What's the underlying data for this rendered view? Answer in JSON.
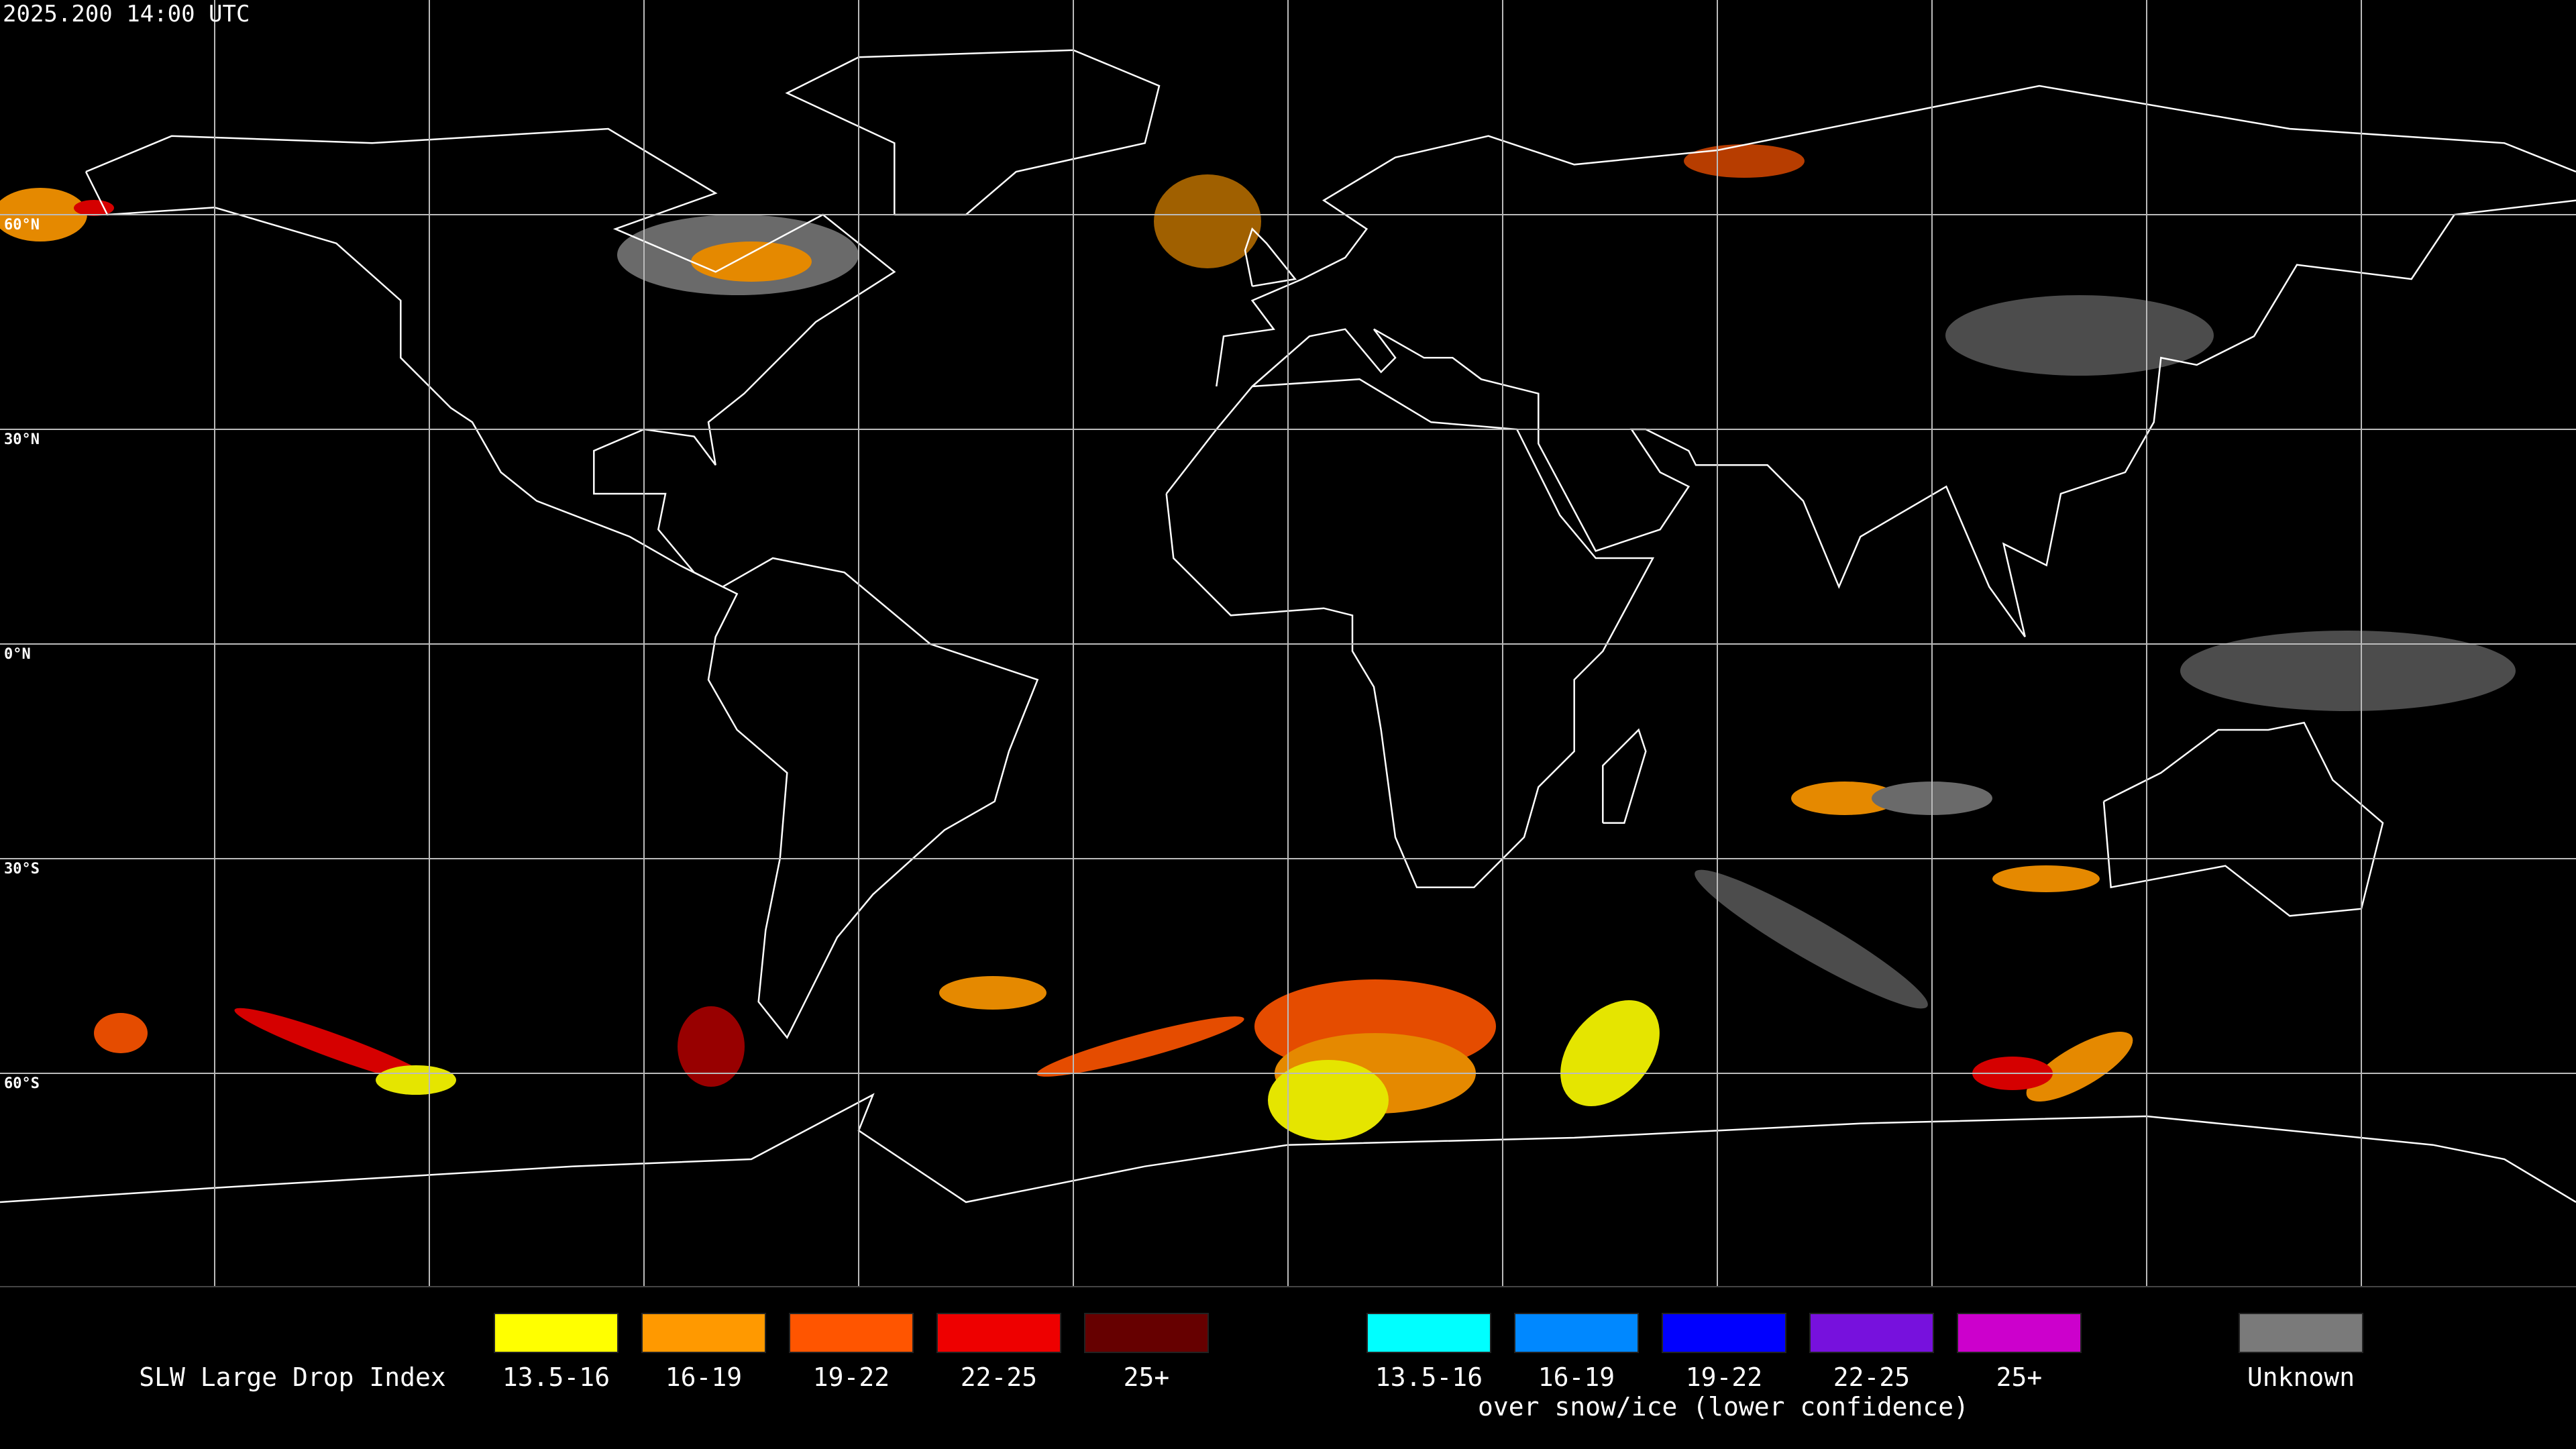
{
  "header": {
    "timestamp": "2025.200 14:00 UTC"
  },
  "map": {
    "latitude_labels": [
      "60°N",
      "30°N",
      "0°N",
      "30°S",
      "60°S"
    ]
  },
  "legend": {
    "title": "SLW Large Drop Index",
    "items": [
      {
        "label": "13.5-16",
        "color": "#ffff00"
      },
      {
        "label": "16-19",
        "color": "#ff9900"
      },
      {
        "label": "19-22",
        "color": "#ff5500"
      },
      {
        "label": "22-25",
        "color": "#ee0000"
      },
      {
        "label": "25+",
        "color": "#660000"
      }
    ],
    "snow_ice_items": [
      {
        "label": "13.5-16",
        "color": "#00ffff"
      },
      {
        "label": "16-19",
        "color": "#0088ff"
      },
      {
        "label": "19-22",
        "color": "#0000ff"
      },
      {
        "label": "22-25",
        "color": "#7711dd"
      },
      {
        "label": "25+",
        "color": "#cc00cc"
      }
    ],
    "snow_ice_note": "over snow/ice (lower confidence)",
    "unknown": {
      "label": "Unknown",
      "color": "#7a7a7a"
    }
  }
}
